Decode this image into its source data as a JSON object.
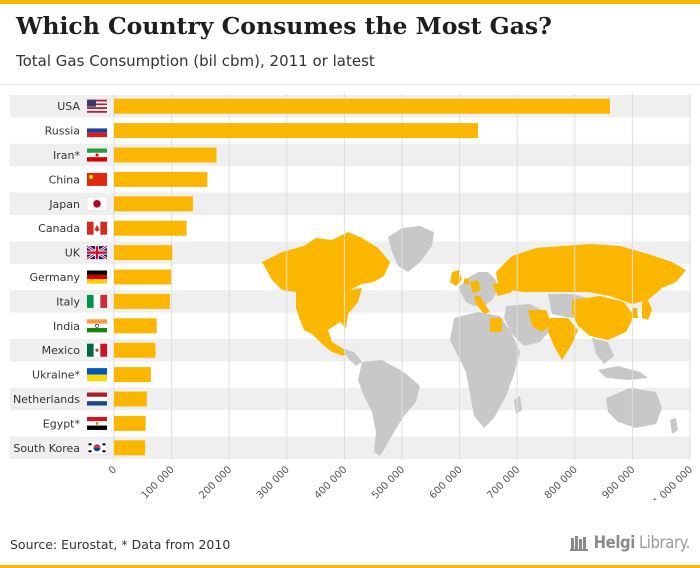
{
  "header": {
    "title": "Which Country Consumes the Most Gas?",
    "subtitle": "Total Gas Consumption (bil cbm), 2011 or latest"
  },
  "footer": {
    "source": "Source: Eurostat, * Data from 2010",
    "brand_bold": "Helgi",
    "brand_light": "Library."
  },
  "colors": {
    "bar": "#fbb700",
    "row_band": "#efefef",
    "map_highlight": "#fbb700",
    "map_land": "#c8c8c8",
    "text": "#333333"
  },
  "chart_data": {
    "type": "bar",
    "orientation": "horizontal",
    "title": "Which Country Consumes the Most Gas?",
    "subtitle": "Total Gas Consumption (bil cbm), 2011 or latest",
    "categories": [
      "USA",
      "Russia",
      "Iran*",
      "China",
      "Japan",
      "Canada",
      "UK",
      "Germany",
      "Italy",
      "India",
      "Mexico",
      "Ukraine*",
      "Netherlands",
      "Egypt*",
      "South Korea"
    ],
    "flags": [
      "us-flag-icon",
      "russia-flag-icon",
      "iran-flag-icon",
      "china-flag-icon",
      "japan-flag-icon",
      "canada-flag-icon",
      "uk-flag-icon",
      "germany-flag-icon",
      "italy-flag-icon",
      "india-flag-icon",
      "mexico-flag-icon",
      "ukraine-flag-icon",
      "netherlands-flag-icon",
      "egypt-flag-icon",
      "south-korea-flag-icon"
    ],
    "values": [
      861000,
      632000,
      178000,
      162000,
      137000,
      126000,
      101000,
      99000,
      97000,
      74000,
      72000,
      64000,
      57000,
      55000,
      54000
    ],
    "xlim": [
      0,
      1000000
    ],
    "xticks": [
      0,
      100000,
      200000,
      300000,
      400000,
      500000,
      600000,
      700000,
      800000,
      900000,
      1000000
    ],
    "xtick_labels": [
      "0",
      "100 000",
      "200 000",
      "300 000",
      "400 000",
      "500 000",
      "600 000",
      "700 000",
      "800 000",
      "900 000",
      "1 000 000"
    ],
    "grid": true,
    "legend": "none",
    "background_map": "world map with listed countries highlighted"
  }
}
